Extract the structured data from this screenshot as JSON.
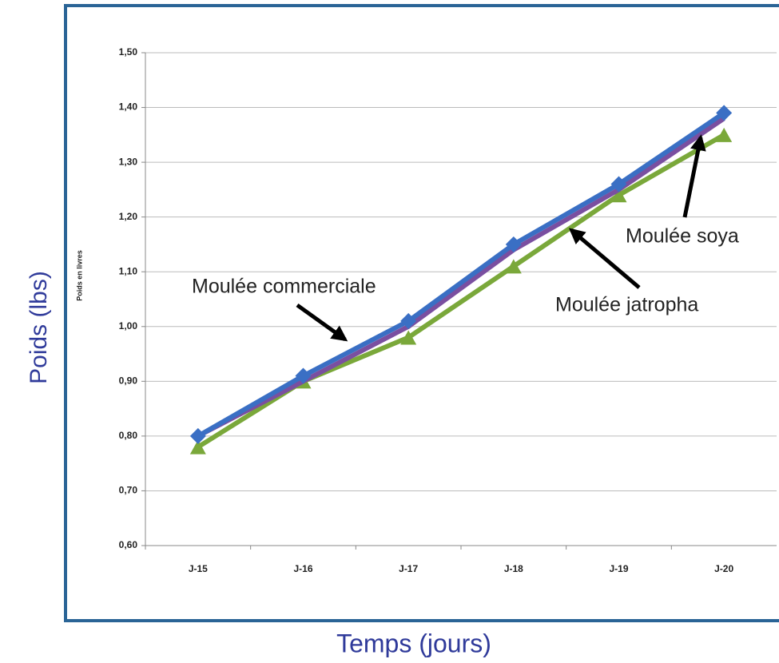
{
  "chart_data": {
    "type": "line",
    "y_label": "Poids (lbs)",
    "y_axis_title": "Poids en livres",
    "x_label": "Temps (jours)",
    "categories": [
      "J-15",
      "J-16",
      "J-17",
      "J-18",
      "J-19",
      "J-20"
    ],
    "series": [
      {
        "name": "Moulée commerciale",
        "color": "#3a6fc4",
        "marker": "diamond",
        "values": [
          0.8,
          0.91,
          1.01,
          1.15,
          1.26,
          1.39
        ]
      },
      {
        "name": "Moulée soya",
        "color": "#7a4fa0",
        "marker": "none",
        "values": [
          0.8,
          0.9,
          1.0,
          1.14,
          1.25,
          1.38
        ]
      },
      {
        "name": "Moulée jatropha",
        "color": "#7aa83a",
        "marker": "triangle",
        "values": [
          0.78,
          0.9,
          0.98,
          1.11,
          1.24,
          1.35
        ]
      }
    ],
    "ylim": [
      0.6,
      1.5
    ],
    "yticks": [
      {
        "value": 0.6,
        "label": "0,60"
      },
      {
        "value": 0.7,
        "label": "0,70"
      },
      {
        "value": 0.8,
        "label": "0,80"
      },
      {
        "value": 0.9,
        "label": "0,90"
      },
      {
        "value": 1.0,
        "label": "1,00"
      },
      {
        "value": 1.1,
        "label": "1,10"
      },
      {
        "value": 1.2,
        "label": "1,20"
      },
      {
        "value": 1.3,
        "label": "1,30"
      },
      {
        "value": 1.4,
        "label": "1,40"
      },
      {
        "value": 1.5,
        "label": "1,50"
      }
    ],
    "grid": true
  }
}
